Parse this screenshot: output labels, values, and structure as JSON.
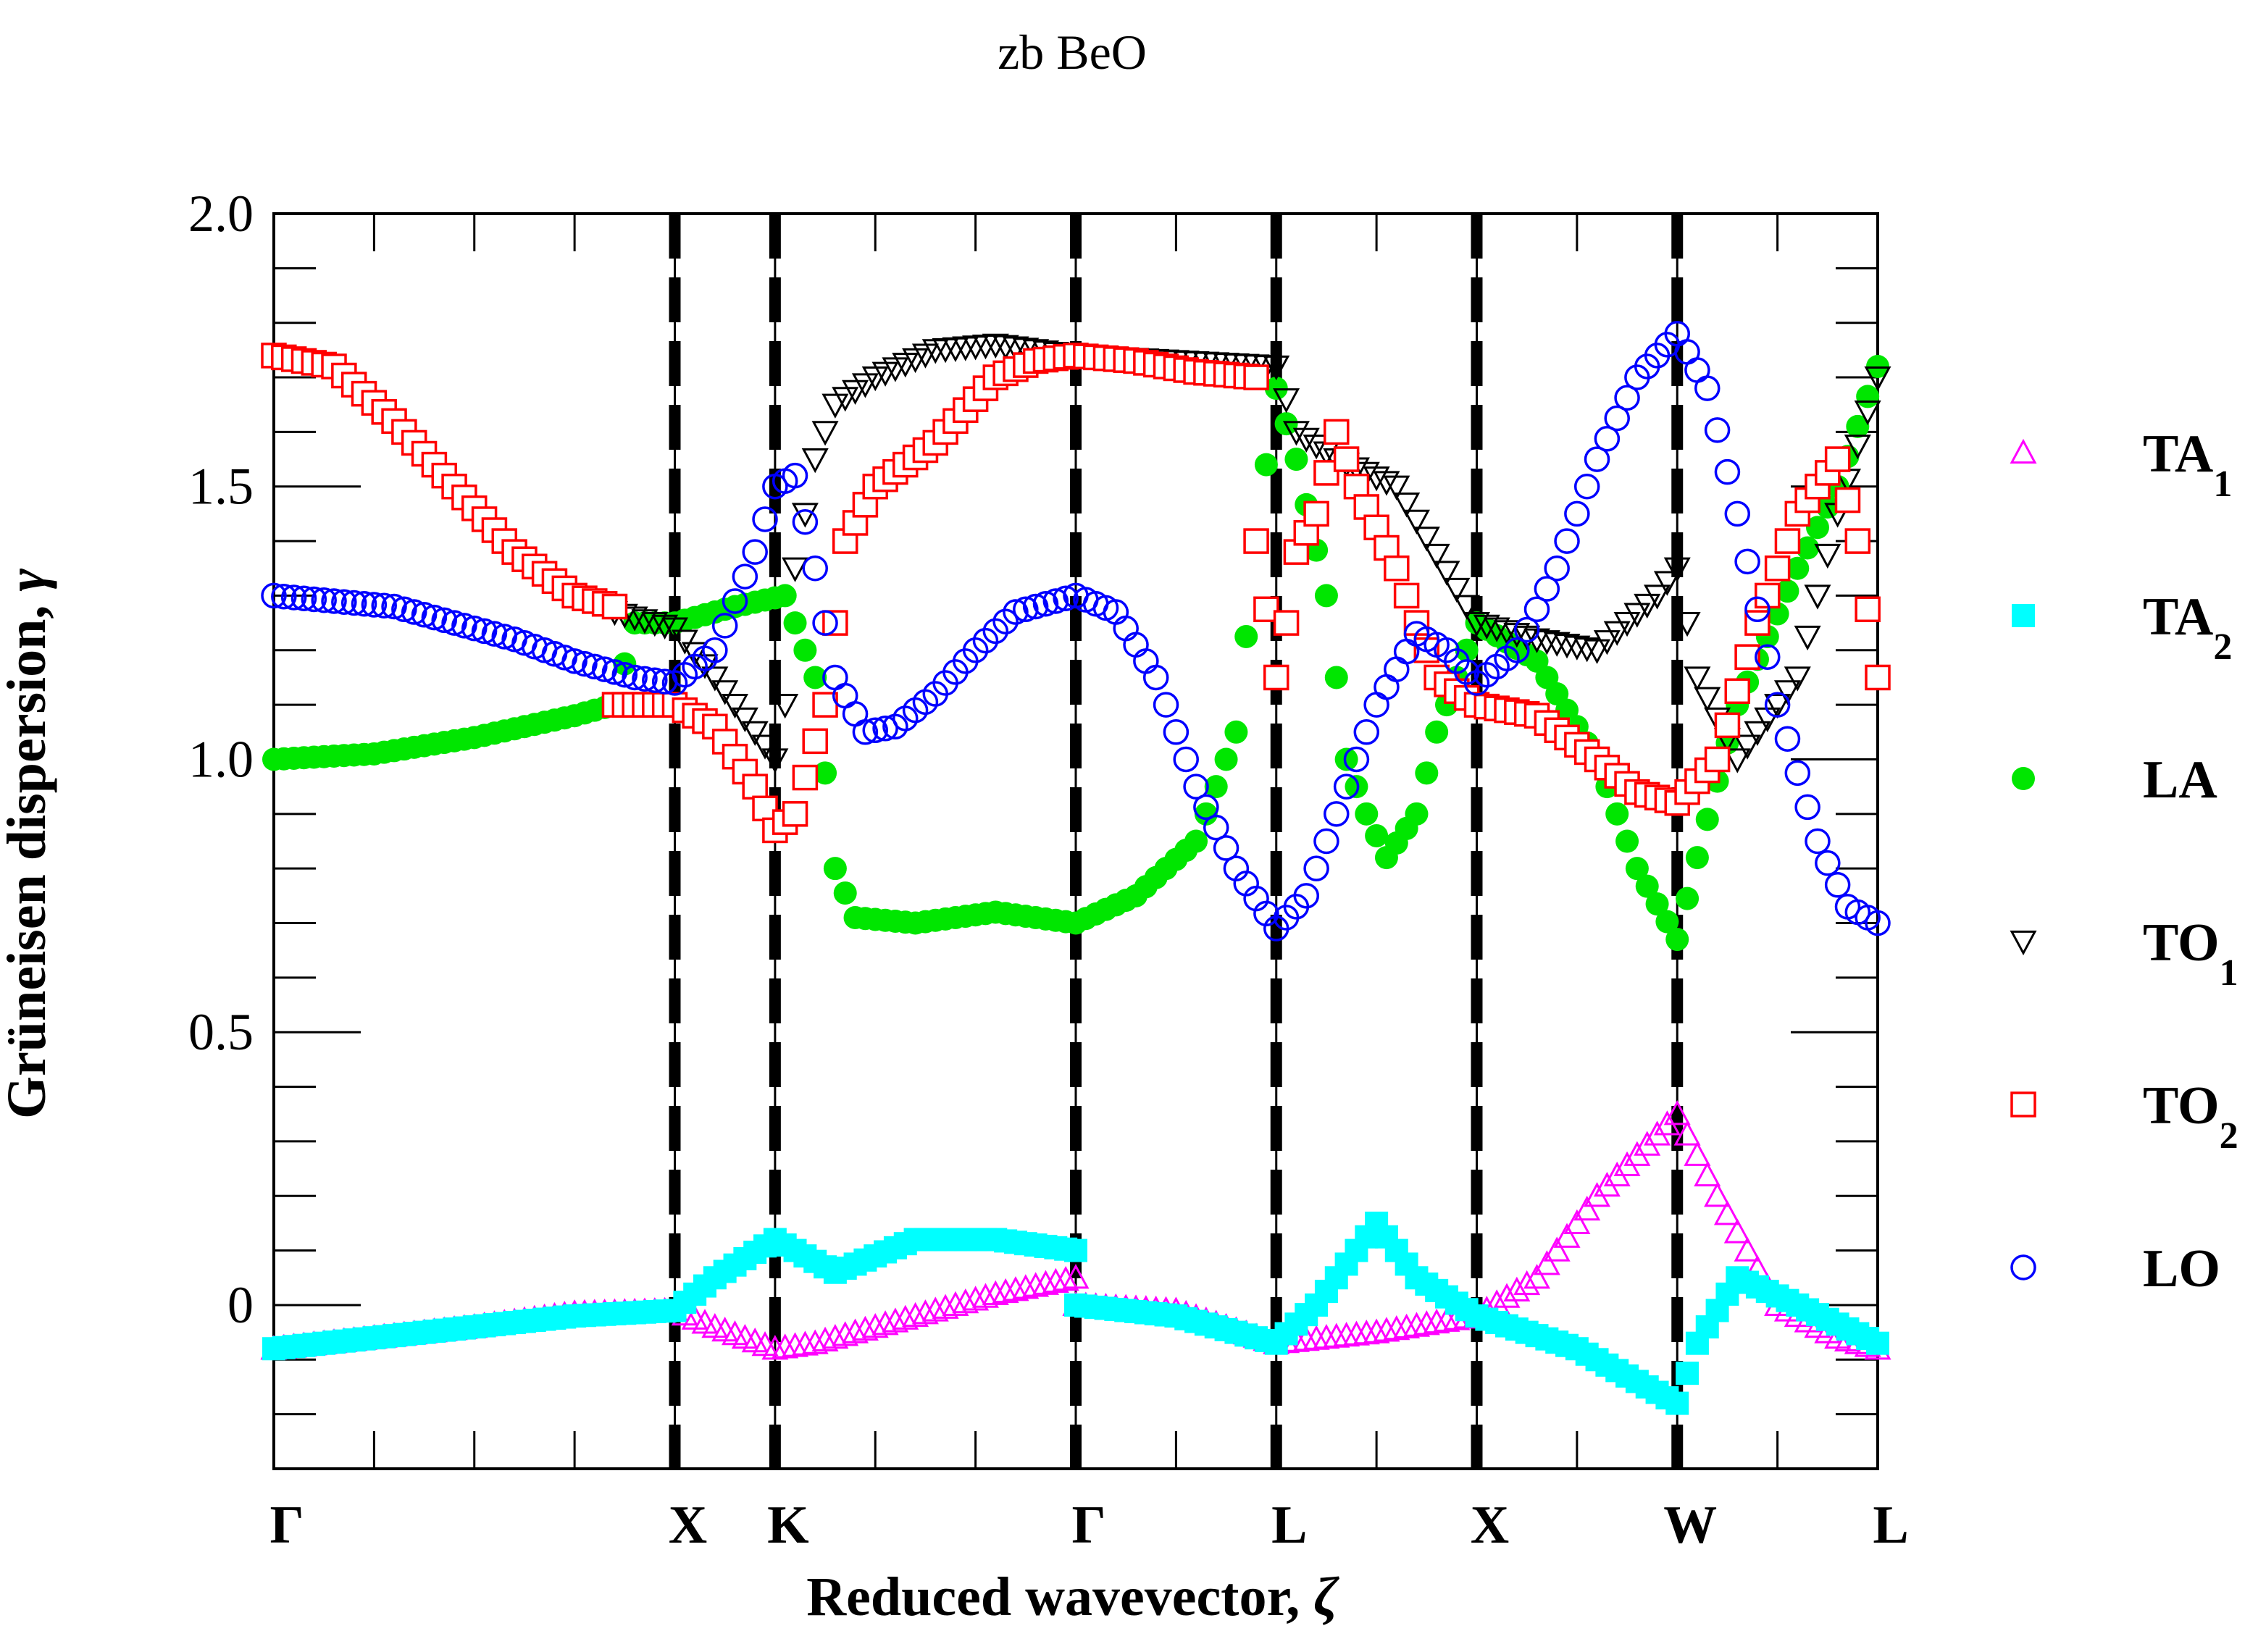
{
  "chart_data": {
    "type": "scatter",
    "title": "zb BeO",
    "xlabel": "Reduced wavevector, ",
    "xlabel_symbol": "ζ",
    "ylabel": "Grüneisen dispersion, ",
    "ylabel_symbol": "γ",
    "xlim": [
      0,
      8
    ],
    "ylim": [
      -0.3,
      2.0
    ],
    "y_major_ticks": [
      0,
      0.5,
      1.0,
      1.5,
      2.0
    ],
    "y_tick_labels": [
      "0",
      "0.5",
      "1.0",
      "1.5",
      "2.0"
    ],
    "y_minor_step": 0.1,
    "x_minor_step": 0.5,
    "high_symmetry_points": [
      {
        "label": "Γ",
        "x": 0
      },
      {
        "label": "X",
        "x": 2
      },
      {
        "label": "K",
        "x": 2.5
      },
      {
        "label": "Γ",
        "x": 4
      },
      {
        "label": "L",
        "x": 5
      },
      {
        "label": "X",
        "x": 6
      },
      {
        "label": "W",
        "x": 7
      },
      {
        "label": "L",
        "x": 8
      }
    ],
    "dashed_lines_x": [
      2,
      2.5,
      4,
      5,
      6,
      7
    ],
    "series": [
      {
        "name": "TA",
        "subscript": "1",
        "color": "#ff00ff",
        "marker": "triangle-up-open",
        "points": [
          [
            0,
            -0.08
          ],
          [
            0.5,
            -0.06
          ],
          [
            1.0,
            -0.04
          ],
          [
            1.5,
            -0.015
          ],
          [
            2.0,
            -0.01
          ],
          [
            2.2,
            -0.04
          ],
          [
            2.5,
            -0.08
          ],
          [
            2.7,
            -0.07
          ],
          [
            3.0,
            -0.04
          ],
          [
            3.3,
            -0.01
          ],
          [
            3.6,
            0.02
          ],
          [
            4.0,
            0.05
          ],
          [
            4.0,
            0.0
          ],
          [
            4.5,
            -0.01
          ],
          [
            5.0,
            -0.07
          ],
          [
            5.5,
            -0.05
          ],
          [
            6.0,
            -0.02
          ],
          [
            6.3,
            0.05
          ],
          [
            6.6,
            0.2
          ],
          [
            7.0,
            0.35
          ],
          [
            7.2,
            0.2
          ],
          [
            7.5,
            0.0
          ],
          [
            7.8,
            -0.06
          ],
          [
            8.0,
            -0.08
          ]
        ]
      },
      {
        "name": "TA",
        "subscript": "2",
        "color": "#00ffff",
        "marker": "square-filled",
        "points": [
          [
            0,
            -0.08
          ],
          [
            0.5,
            -0.06
          ],
          [
            1.0,
            -0.04
          ],
          [
            1.5,
            -0.02
          ],
          [
            2.0,
            -0.01
          ],
          [
            2.2,
            0.05
          ],
          [
            2.5,
            0.12
          ],
          [
            2.8,
            0.06
          ],
          [
            3.2,
            0.12
          ],
          [
            3.6,
            0.12
          ],
          [
            4.0,
            0.1
          ],
          [
            4.0,
            0.0
          ],
          [
            4.5,
            -0.02
          ],
          [
            5.0,
            -0.07
          ],
          [
            5.2,
            0.0
          ],
          [
            5.5,
            0.15
          ],
          [
            5.7,
            0.05
          ],
          [
            6.0,
            -0.02
          ],
          [
            6.5,
            -0.08
          ],
          [
            7.0,
            -0.18
          ],
          [
            7.1,
            -0.07
          ],
          [
            7.3,
            0.05
          ],
          [
            7.6,
            0.0
          ],
          [
            8.0,
            -0.07
          ]
        ]
      },
      {
        "name": "LA",
        "subscript": "",
        "color": "#00e600",
        "marker": "circle-filled",
        "points": [
          [
            0,
            1.0
          ],
          [
            0.5,
            1.01
          ],
          [
            1.0,
            1.04
          ],
          [
            1.5,
            1.08
          ],
          [
            1.7,
            1.1
          ],
          [
            1.8,
            1.25
          ],
          [
            2.0,
            1.25
          ],
          [
            2.3,
            1.28
          ],
          [
            2.55,
            1.3
          ],
          [
            2.7,
            1.15
          ],
          [
            2.8,
            0.8
          ],
          [
            2.9,
            0.71
          ],
          [
            3.2,
            0.7
          ],
          [
            3.6,
            0.72
          ],
          [
            4.0,
            0.7
          ],
          [
            4.3,
            0.75
          ],
          [
            4.6,
            0.85
          ],
          [
            4.8,
            1.05
          ],
          [
            4.9,
            1.4
          ],
          [
            5.0,
            1.68
          ],
          [
            5.1,
            1.55
          ],
          [
            5.25,
            1.3
          ],
          [
            5.35,
            1.0
          ],
          [
            5.45,
            0.9
          ],
          [
            5.55,
            0.82
          ],
          [
            5.7,
            0.9
          ],
          [
            5.8,
            1.05
          ],
          [
            6.0,
            1.25
          ],
          [
            6.3,
            1.18
          ],
          [
            6.6,
            1.0
          ],
          [
            6.8,
            0.8
          ],
          [
            7.0,
            0.67
          ],
          [
            7.1,
            0.82
          ],
          [
            7.3,
            1.1
          ],
          [
            7.6,
            1.35
          ],
          [
            7.8,
            1.5
          ],
          [
            8.0,
            1.72
          ]
        ]
      },
      {
        "name": "TO",
        "subscript": "1",
        "color": "#000000",
        "marker": "triangle-down-open",
        "points": [
          [
            1.7,
            1.27
          ],
          [
            2.0,
            1.24
          ],
          [
            2.2,
            1.15
          ],
          [
            2.5,
            1.0
          ],
          [
            2.55,
            1.1
          ],
          [
            2.6,
            1.35
          ],
          [
            2.7,
            1.55
          ],
          [
            2.8,
            1.65
          ],
          [
            3.0,
            1.7
          ],
          [
            3.3,
            1.75
          ],
          [
            3.6,
            1.76
          ],
          [
            4.0,
            1.74
          ],
          [
            4.5,
            1.73
          ],
          [
            5.0,
            1.72
          ],
          [
            5.1,
            1.6
          ],
          [
            5.3,
            1.55
          ],
          [
            5.6,
            1.5
          ],
          [
            6.0,
            1.25
          ],
          [
            6.3,
            1.22
          ],
          [
            6.6,
            1.2
          ],
          [
            6.9,
            1.3
          ],
          [
            7.0,
            1.35
          ],
          [
            7.1,
            1.15
          ],
          [
            7.3,
            1.0
          ],
          [
            7.6,
            1.15
          ],
          [
            7.8,
            1.45
          ],
          [
            8.0,
            1.7
          ]
        ]
      },
      {
        "name": "TO",
        "subscript": "2",
        "color": "#ff0000",
        "marker": "square-open",
        "points": [
          [
            0,
            1.74
          ],
          [
            0.3,
            1.72
          ],
          [
            0.6,
            1.62
          ],
          [
            0.9,
            1.5
          ],
          [
            1.2,
            1.38
          ],
          [
            1.5,
            1.3
          ],
          [
            1.7,
            1.28
          ],
          [
            1.7,
            1.1
          ],
          [
            2.0,
            1.1
          ],
          [
            2.2,
            1.06
          ],
          [
            2.4,
            0.95
          ],
          [
            2.5,
            0.87
          ],
          [
            2.6,
            0.9
          ],
          [
            2.75,
            1.1
          ],
          [
            2.85,
            1.4
          ],
          [
            3.0,
            1.5
          ],
          [
            3.3,
            1.58
          ],
          [
            3.6,
            1.7
          ],
          [
            3.8,
            1.73
          ],
          [
            4.0,
            1.74
          ],
          [
            4.3,
            1.73
          ],
          [
            4.6,
            1.71
          ],
          [
            4.9,
            1.7
          ],
          [
            4.9,
            1.4
          ],
          [
            5.0,
            1.15
          ],
          [
            5.05,
            1.25
          ],
          [
            5.1,
            1.38
          ],
          [
            5.2,
            1.45
          ],
          [
            5.3,
            1.6
          ],
          [
            5.4,
            1.5
          ],
          [
            5.6,
            1.35
          ],
          [
            5.8,
            1.15
          ],
          [
            6.0,
            1.1
          ],
          [
            6.3,
            1.08
          ],
          [
            6.6,
            1.0
          ],
          [
            6.8,
            0.94
          ],
          [
            7.0,
            0.92
          ],
          [
            7.2,
            1.0
          ],
          [
            7.4,
            1.25
          ],
          [
            7.6,
            1.45
          ],
          [
            7.8,
            1.55
          ],
          [
            7.9,
            1.4
          ],
          [
            8.0,
            1.15
          ]
        ]
      },
      {
        "name": "LO",
        "subscript": "",
        "color": "#0000ff",
        "marker": "circle-open",
        "points": [
          [
            0,
            1.3
          ],
          [
            0.3,
            1.29
          ],
          [
            0.6,
            1.28
          ],
          [
            0.9,
            1.25
          ],
          [
            1.2,
            1.22
          ],
          [
            1.5,
            1.18
          ],
          [
            1.8,
            1.15
          ],
          [
            2.0,
            1.14
          ],
          [
            2.2,
            1.2
          ],
          [
            2.4,
            1.38
          ],
          [
            2.5,
            1.5
          ],
          [
            2.6,
            1.52
          ],
          [
            2.7,
            1.35
          ],
          [
            2.8,
            1.15
          ],
          [
            2.95,
            1.05
          ],
          [
            3.1,
            1.06
          ],
          [
            3.3,
            1.12
          ],
          [
            3.5,
            1.2
          ],
          [
            3.7,
            1.27
          ],
          [
            4.0,
            1.3
          ],
          [
            4.2,
            1.27
          ],
          [
            4.4,
            1.15
          ],
          [
            4.6,
            0.95
          ],
          [
            4.8,
            0.8
          ],
          [
            5.0,
            0.69
          ],
          [
            5.15,
            0.75
          ],
          [
            5.35,
            0.95
          ],
          [
            5.5,
            1.1
          ],
          [
            5.7,
            1.23
          ],
          [
            5.85,
            1.2
          ],
          [
            6.0,
            1.14
          ],
          [
            6.2,
            1.2
          ],
          [
            6.4,
            1.35
          ],
          [
            6.6,
            1.55
          ],
          [
            6.8,
            1.7
          ],
          [
            7.0,
            1.78
          ],
          [
            7.15,
            1.68
          ],
          [
            7.3,
            1.45
          ],
          [
            7.5,
            1.1
          ],
          [
            7.7,
            0.85
          ],
          [
            7.85,
            0.73
          ],
          [
            8.0,
            0.7
          ]
        ]
      }
    ],
    "legend_position": "right"
  }
}
